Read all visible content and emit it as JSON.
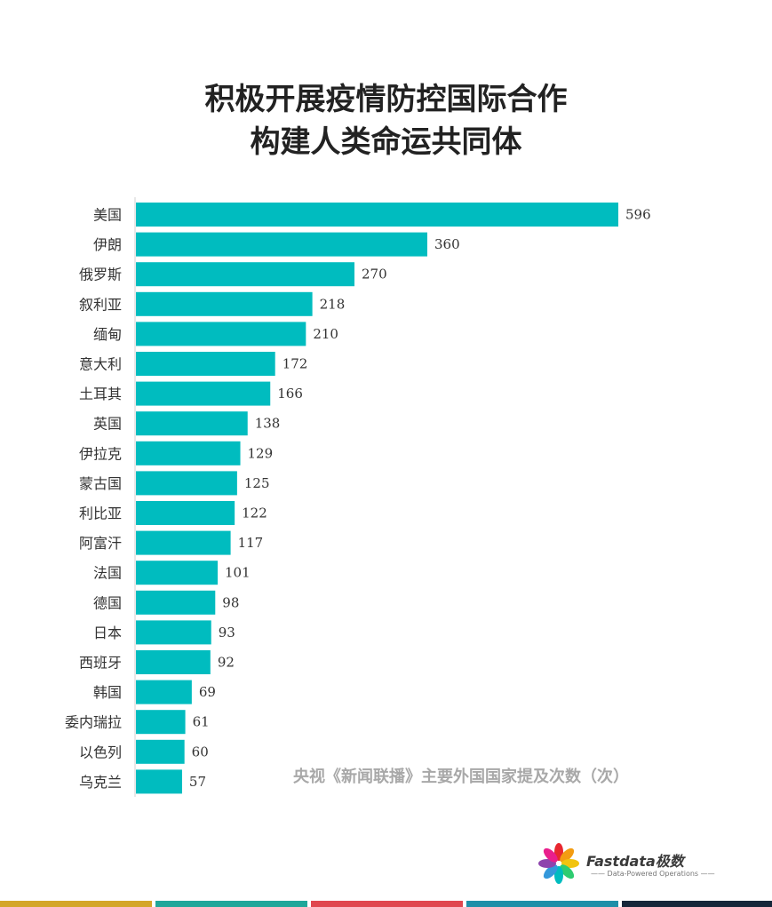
{
  "title_lines": [
    "积极开展疫情防控国际合作",
    "构建人类命运共同体"
  ],
  "chart_data": {
    "type": "bar",
    "orientation": "horizontal",
    "title": "积极开展疫情防控国际合作 构建人类命运共同体",
    "subtitle": "央视《新闻联播》主要外国国家提及次数（次）",
    "categories": [
      "美国",
      "伊朗",
      "俄罗斯",
      "叙利亚",
      "缅甸",
      "意大利",
      "土耳其",
      "英国",
      "伊拉克",
      "蒙古国",
      "利比亚",
      "阿富汗",
      "法国",
      "德国",
      "日本",
      "西班牙",
      "韩国",
      "委内瑞拉",
      "以色列",
      "乌克兰"
    ],
    "values": [
      596,
      360,
      270,
      218,
      210,
      172,
      166,
      138,
      129,
      125,
      122,
      117,
      101,
      98,
      93,
      92,
      69,
      61,
      60,
      57
    ],
    "xlim": [
      0,
      596
    ],
    "grid": false,
    "data_labels": true,
    "bar_color": "#00bcbf"
  },
  "logo": {
    "name": "Fastdata极数",
    "tagline": "Data-Powered Operations",
    "petal_colors": [
      "#e8272f",
      "#f39c12",
      "#f1c40f",
      "#2ecc71",
      "#00bcbf",
      "#3498db",
      "#8e44ad",
      "#e91e8c"
    ]
  },
  "bottom_strip_colors": [
    "#d4a628",
    "#1fa79a",
    "#e0474f",
    "#1e8fa8",
    "#16273a"
  ]
}
